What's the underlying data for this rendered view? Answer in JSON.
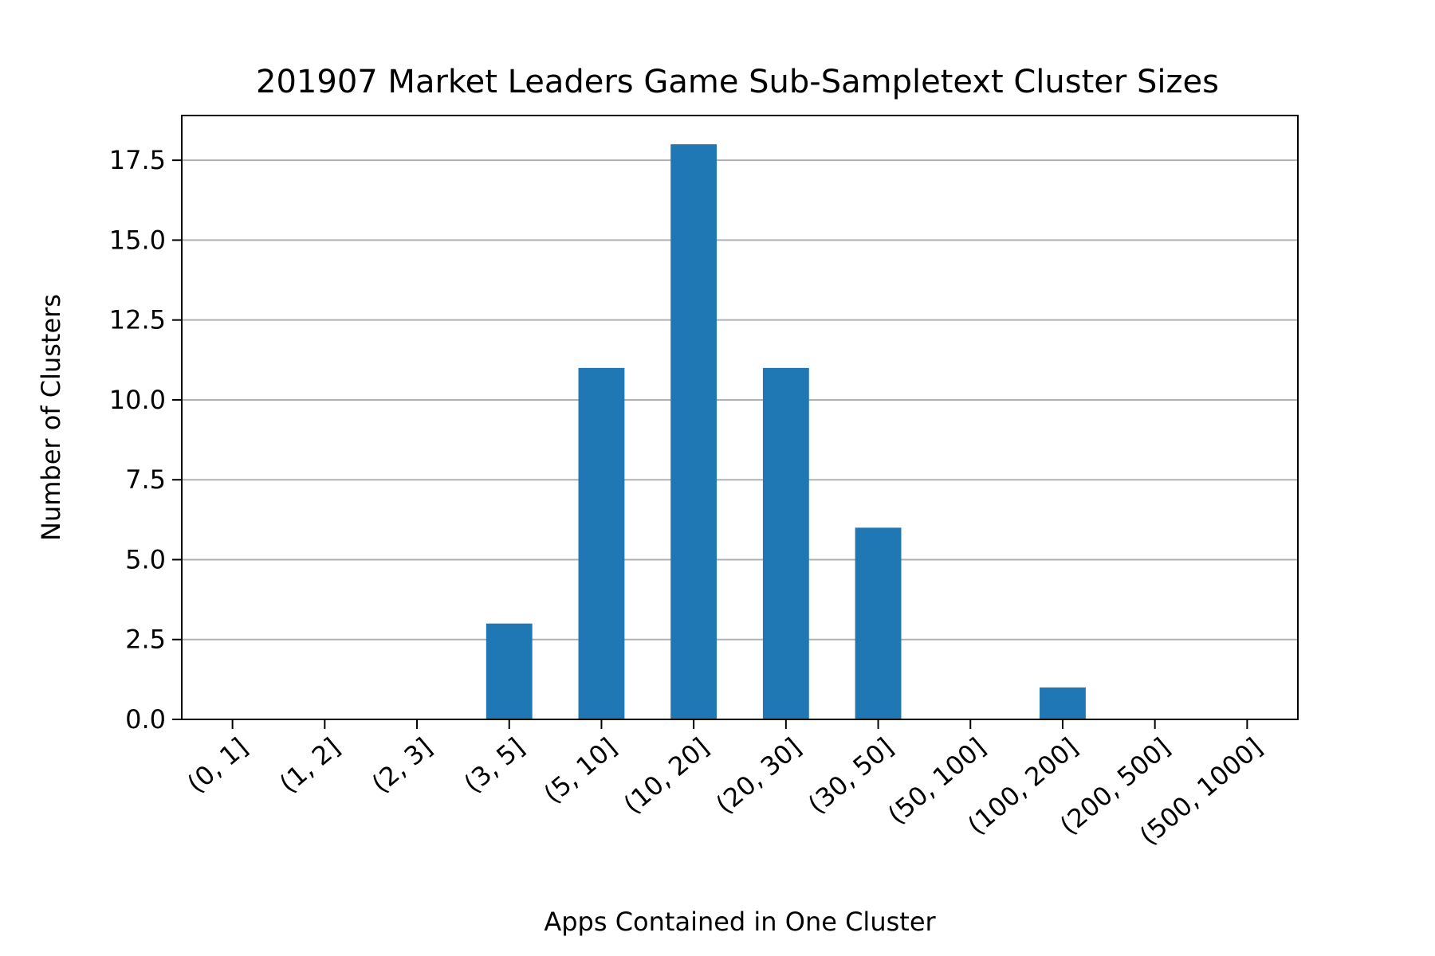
{
  "chart_data": {
    "type": "bar",
    "title": "201907 Market Leaders Game Sub-Sampletext Cluster Sizes",
    "xlabel": "Apps Contained in One Cluster",
    "ylabel": "Number of Clusters",
    "categories": [
      "(0, 1]",
      "(1, 2]",
      "(2, 3]",
      "(3, 5]",
      "(5, 10]",
      "(10, 20]",
      "(20, 30]",
      "(30, 50]",
      "(50, 100]",
      "(100, 200]",
      "(200, 500]",
      "(500, 1000]"
    ],
    "values": [
      0,
      0,
      0,
      3,
      11,
      18,
      11,
      6,
      0,
      1,
      0,
      0
    ],
    "ylim": [
      0,
      18.9
    ],
    "yticks": [
      "0.0",
      "2.5",
      "5.0",
      "7.5",
      "10.0",
      "12.5",
      "15.0",
      "17.5"
    ],
    "ytick_values": [
      0,
      2.5,
      5,
      7.5,
      10,
      12.5,
      15,
      17.5
    ],
    "grid": "y",
    "bar_color": "#1f77b4",
    "grid_color": "#b0b0b0"
  }
}
